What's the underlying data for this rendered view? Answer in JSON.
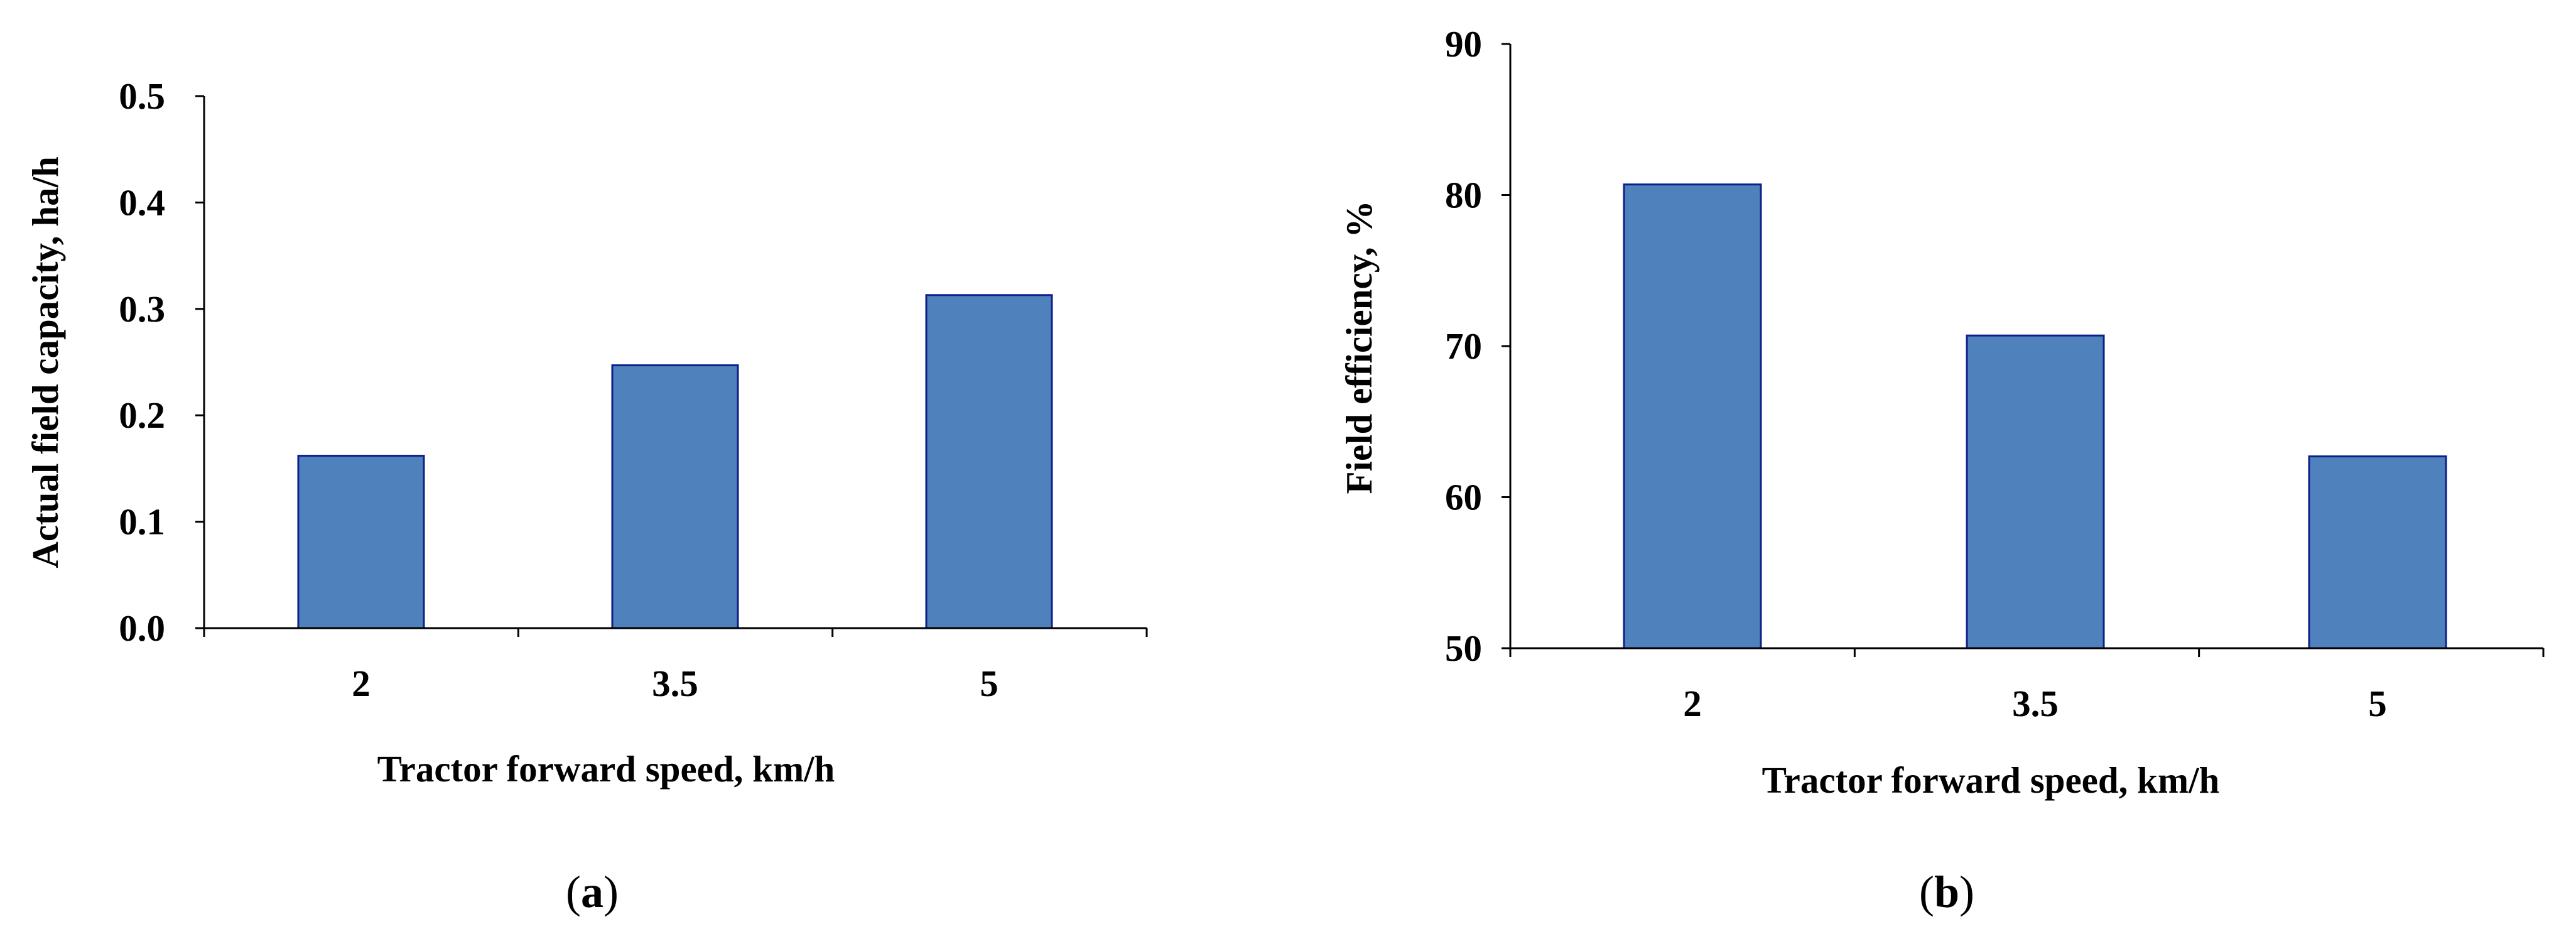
{
  "colors": {
    "bar_fill": "#4f81bd",
    "bar_stroke": "#0d1f8a",
    "axis": "#000000"
  },
  "chart_data": [
    {
      "type": "bar",
      "panel_label": {
        "open": "(",
        "letter": "a",
        "close": ")"
      },
      "categories": [
        "2",
        "3.5",
        "5"
      ],
      "values": [
        0.162,
        0.247,
        0.313
      ],
      "xlabel": "Tractor forward speed, km/h",
      "ylabel": "Actual field capacity, ha/h",
      "ylim": [
        0,
        0.5
      ],
      "yticks": [
        "0.0",
        "0.1",
        "0.2",
        "0.3",
        "0.4",
        "0.5"
      ]
    },
    {
      "type": "bar",
      "panel_label": {
        "open": "(",
        "letter": "b",
        "close": ")"
      },
      "categories": [
        "2",
        "3.5",
        "5"
      ],
      "values": [
        80.7,
        70.7,
        62.7
      ],
      "xlabel": "Tractor forward speed, km/h",
      "ylabel": "Field efficiency, %",
      "ylim": [
        50,
        90
      ],
      "yticks": [
        "50",
        "60",
        "70",
        "80",
        "90"
      ]
    }
  ]
}
